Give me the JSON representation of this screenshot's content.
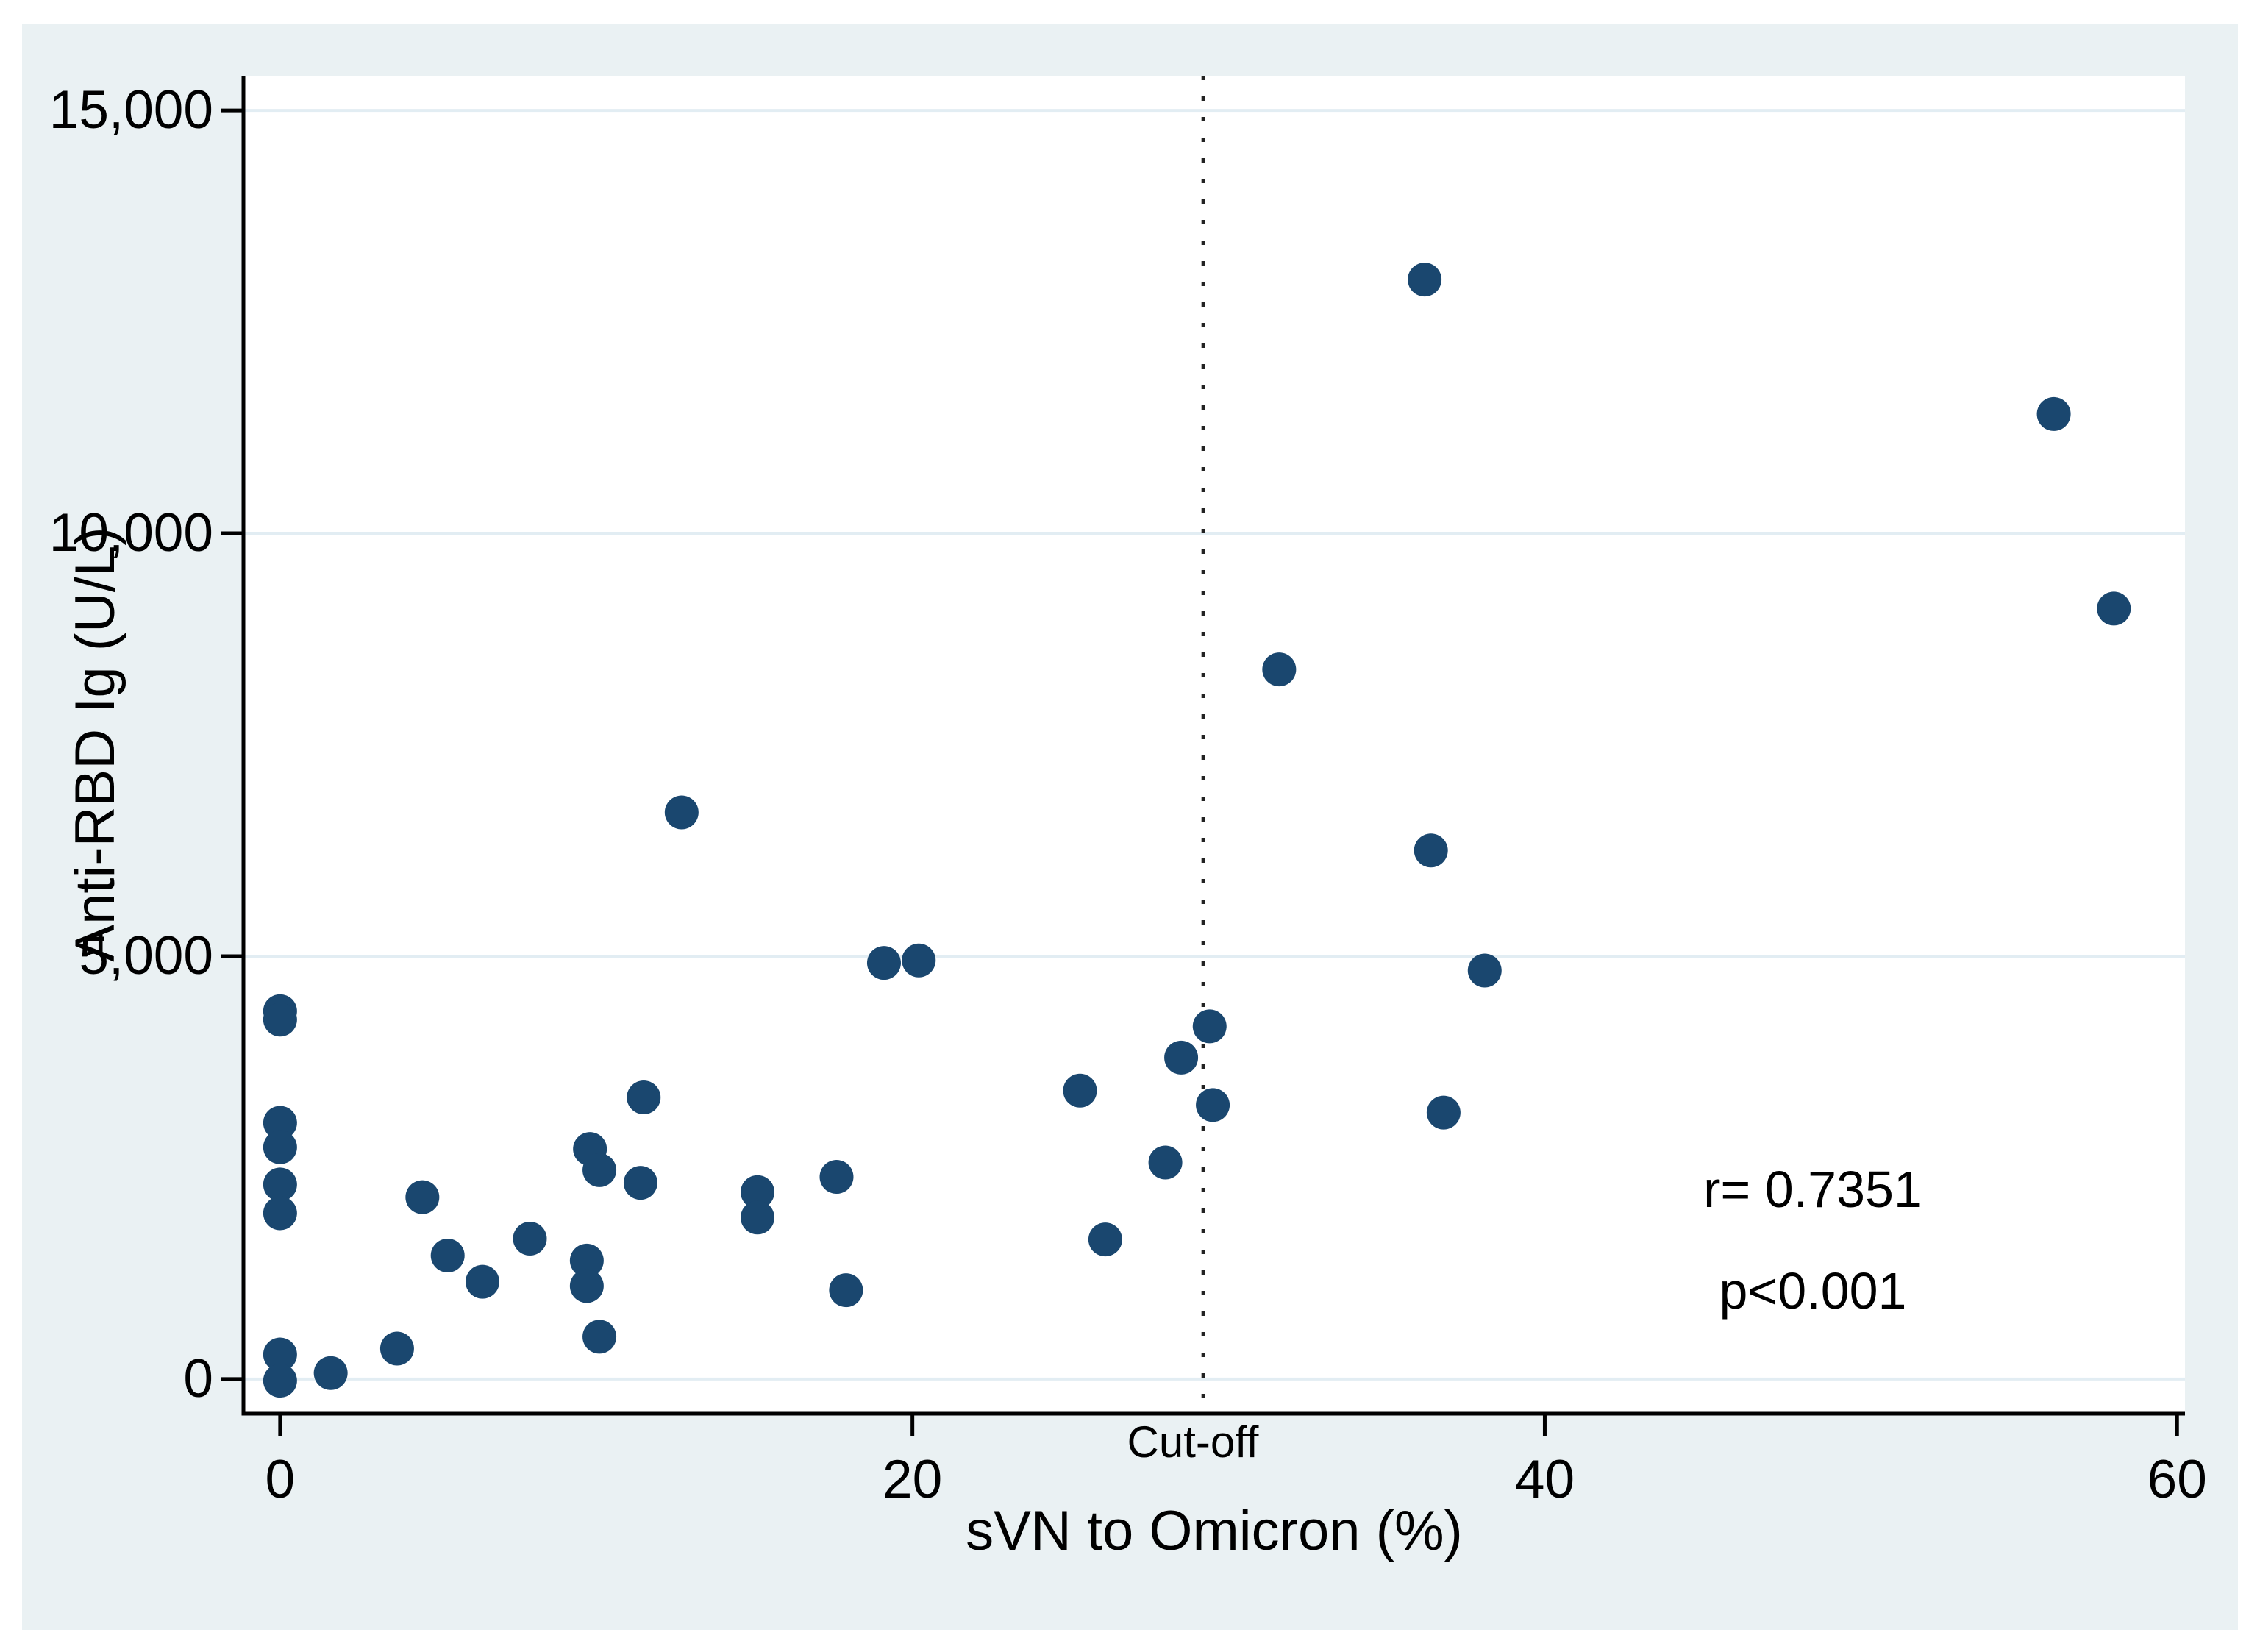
{
  "figure": {
    "background_color": "#eaf1f3",
    "plot_background_color": "#ffffff",
    "axis_color": "#000000",
    "gridline_color": "#e2edf3",
    "cutoff_line_color": "#222222",
    "point_color": "#1a476f"
  },
  "chart_data": {
    "type": "scatter",
    "title": "",
    "xlabel": "sVN to Omicron (%)",
    "ylabel": "Anti-RBD Ig (U/L)",
    "xlim": [
      -1.16,
      60.25
    ],
    "ylim": [
      -410,
      15410
    ],
    "x_ticks": [
      0,
      20,
      40,
      60
    ],
    "x_tick_labels": [
      "0",
      "20",
      "40",
      "60"
    ],
    "y_ticks": [
      0,
      5000,
      10000,
      15000
    ],
    "y_tick_labels": [
      "0",
      "5,000",
      "10,000",
      "15,000"
    ],
    "grid": "horizontal-only",
    "legend": "none",
    "cutoff": {
      "x": 29.2,
      "label": "Cut-off"
    },
    "annotation": {
      "line1": "r= 0.7351",
      "line2": "p<0.001"
    },
    "points": [
      [
        0,
        4350
      ],
      [
        0,
        4250
      ],
      [
        0,
        3030
      ],
      [
        0,
        2740
      ],
      [
        0,
        2300
      ],
      [
        0,
        1960
      ],
      [
        0,
        290
      ],
      [
        0,
        -20
      ],
      [
        1.6,
        70
      ],
      [
        3.7,
        360
      ],
      [
        4.5,
        2150
      ],
      [
        5.3,
        1460
      ],
      [
        6.4,
        1150
      ],
      [
        7.9,
        1660
      ],
      [
        9.8,
        2720
      ],
      [
        10.1,
        2470
      ],
      [
        9.7,
        1400
      ],
      [
        9.7,
        1100
      ],
      [
        10.1,
        500
      ],
      [
        11.4,
        2320
      ],
      [
        11.5,
        3330
      ],
      [
        12.7,
        6700
      ],
      [
        15.1,
        2210
      ],
      [
        15.1,
        1910
      ],
      [
        17.6,
        2390
      ],
      [
        17.9,
        1050
      ],
      [
        19.1,
        4920
      ],
      [
        20.2,
        4950
      ],
      [
        25.3,
        3410
      ],
      [
        26.1,
        1650
      ],
      [
        28.0,
        2560
      ],
      [
        28.5,
        3800
      ],
      [
        29.4,
        4170
      ],
      [
        29.5,
        3240
      ],
      [
        31.6,
        8390
      ],
      [
        36.2,
        13000
      ],
      [
        36.4,
        6250
      ],
      [
        36.8,
        3150
      ],
      [
        38.1,
        4830
      ],
      [
        56.1,
        11410
      ],
      [
        58.0,
        9110
      ]
    ]
  }
}
